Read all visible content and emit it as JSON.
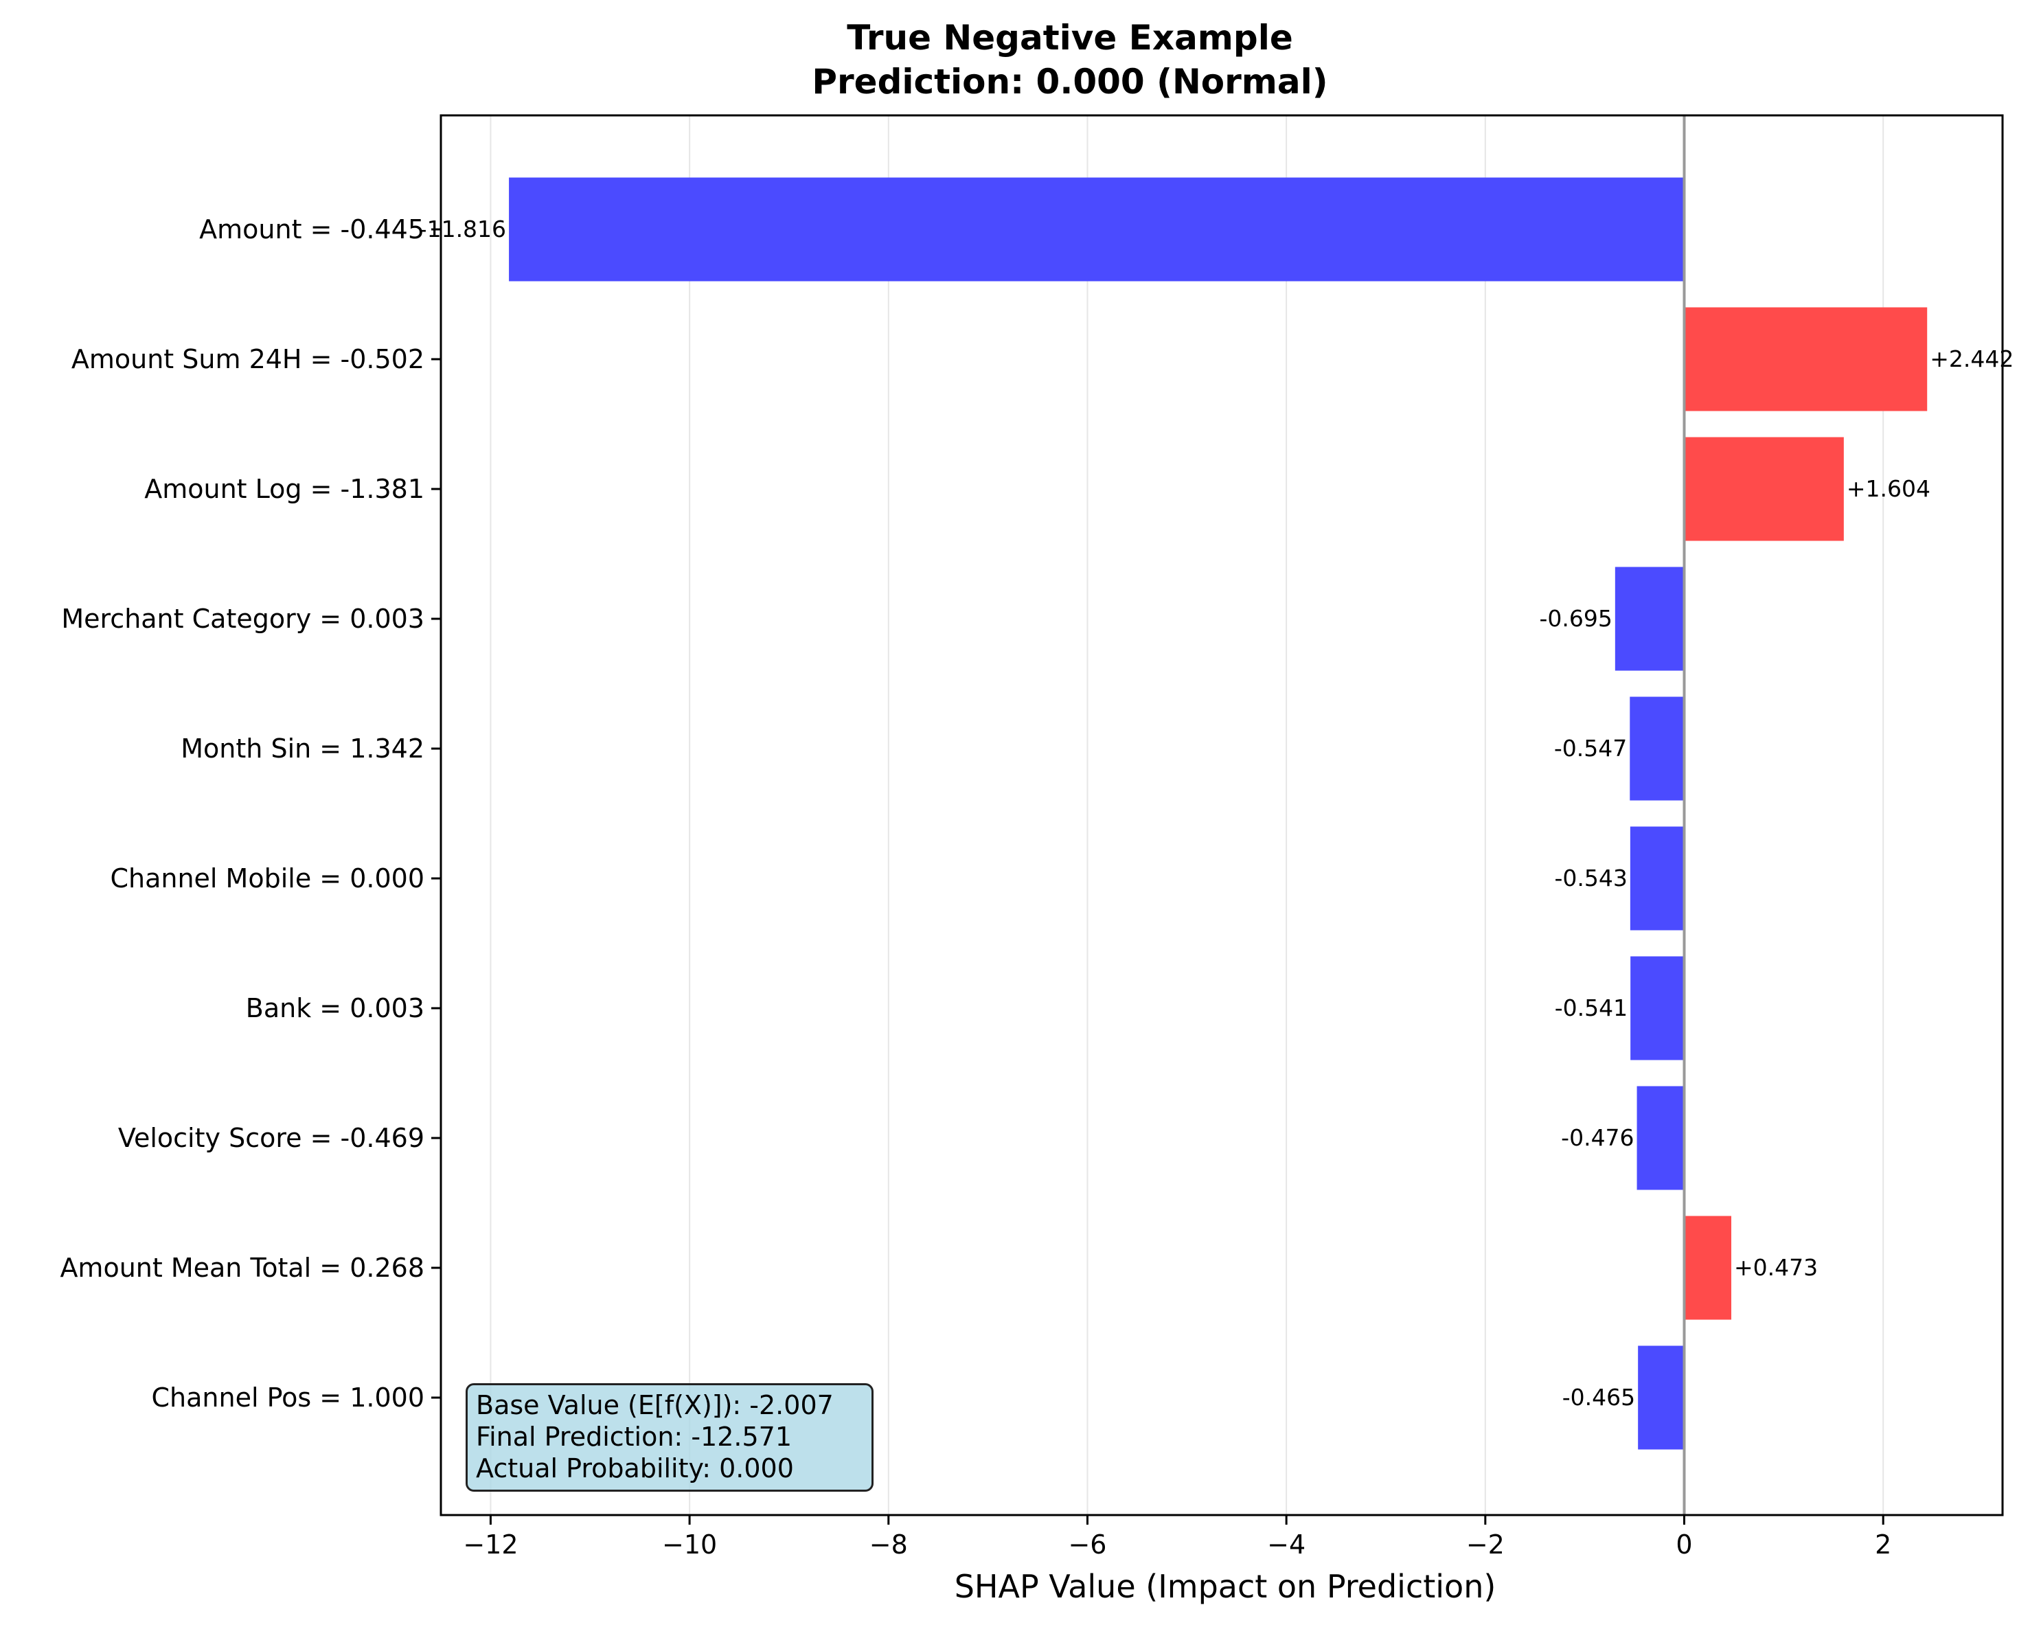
{
  "chart_data": {
    "type": "bar",
    "orientation": "horizontal",
    "title_line1": "True Negative Example",
    "title_line2": "Prediction: 0.000 (Normal)",
    "xlabel": "SHAP Value (Impact on Prediction)",
    "xlim": [
      -12.5,
      3.2
    ],
    "xticks": [
      -12,
      -10,
      -8,
      -6,
      -4,
      -2,
      0,
      2
    ],
    "xtick_labels": [
      "−12",
      "−10",
      "−8",
      "−6",
      "−4",
      "−2",
      "0",
      "2"
    ],
    "grid": "vertical",
    "categories": [
      "Amount = -0.445",
      "Amount Sum 24H = -0.502",
      "Amount Log = -1.381",
      "Merchant Category = 0.003",
      "Month Sin = 1.342",
      "Channel Mobile = 0.000",
      "Bank = 0.003",
      "Velocity Score = -0.469",
      "Amount Mean Total = 0.268",
      "Channel Pos = 1.000"
    ],
    "values": [
      -11.816,
      2.442,
      1.604,
      -0.695,
      -0.547,
      -0.543,
      -0.541,
      -0.476,
      0.473,
      -0.465
    ],
    "value_labels": [
      "-11.816",
      "+2.442",
      "+1.604",
      "-0.695",
      "-0.547",
      "-0.543",
      "-0.541",
      "-0.476",
      "+0.473",
      "-0.465"
    ],
    "colors": {
      "positive": "#ff4b4b",
      "negative": "#4b4bff",
      "zero_line": "#999999",
      "grid": "#e6e6e6"
    }
  },
  "info_box": {
    "line1": "Base Value (E[f(X)]): -2.007",
    "line2": "Final Prediction: -12.571",
    "line3": "Actual Probability: 0.000",
    "background": "#add8e6"
  }
}
